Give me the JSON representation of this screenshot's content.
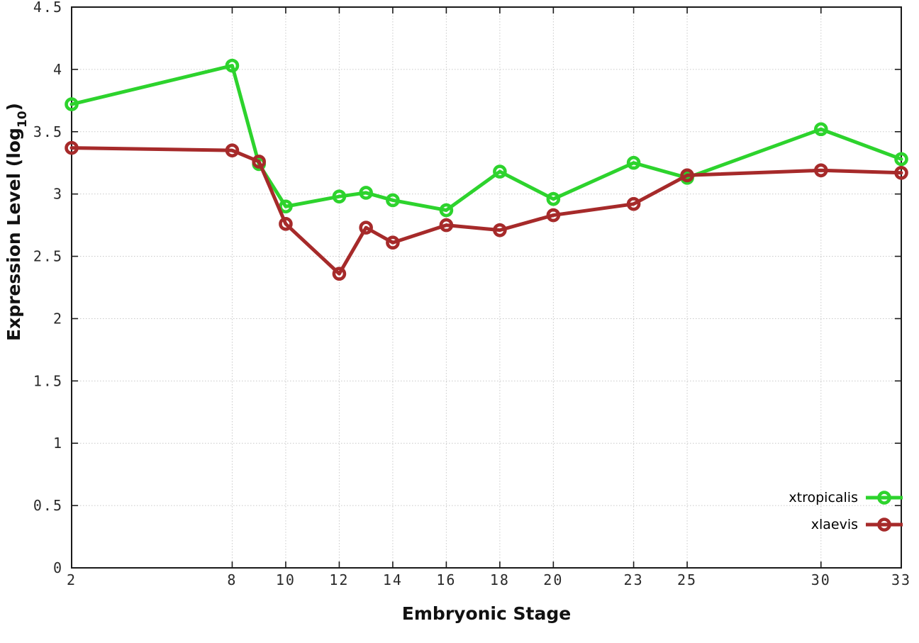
{
  "chart_data": {
    "type": "line",
    "title": "",
    "xlabel": "Embryonic Stage",
    "ylabel": {
      "prefix": "Expression Level (log",
      "sub": "10",
      "suffix": ")"
    },
    "x": [
      2,
      8,
      9,
      10,
      12,
      13,
      14,
      16,
      18,
      20,
      23,
      25,
      30,
      33
    ],
    "series": [
      {
        "name": "xtropicalis",
        "color": "#2dd32d",
        "values": [
          3.72,
          4.03,
          3.24,
          2.9,
          2.98,
          3.01,
          2.95,
          2.87,
          3.18,
          2.96,
          3.25,
          3.13,
          3.52,
          3.28
        ]
      },
      {
        "name": "xlaevis",
        "color": "#a62a2a",
        "values": [
          3.37,
          3.35,
          3.26,
          2.76,
          2.36,
          2.73,
          2.61,
          2.75,
          2.71,
          2.83,
          2.92,
          3.15,
          3.19,
          3.17
        ]
      }
    ],
    "xlim": [
      2,
      33
    ],
    "ylim": [
      0,
      4.5
    ],
    "xticks": [
      2,
      8,
      10,
      12,
      14,
      16,
      18,
      20,
      23,
      25,
      30,
      33
    ],
    "xtick_labels": [
      "2",
      "8",
      "10",
      "12",
      "14",
      "16",
      "18",
      "20",
      "23",
      "25",
      "30",
      "33"
    ],
    "yticks": [
      0,
      0.5,
      1,
      1.5,
      2,
      2.5,
      3,
      3.5,
      4,
      4.5
    ],
    "ytick_labels": [
      "0",
      "0.5",
      "1",
      "1.5",
      "2",
      "2.5",
      "3",
      "3.5",
      "4",
      "4.5"
    ],
    "grid": true,
    "legend_position": "bottom-right",
    "colors": {
      "grid": "#c9c9c9",
      "axis": "#1a1a1a",
      "tick_text": "#2a2a2a"
    }
  }
}
